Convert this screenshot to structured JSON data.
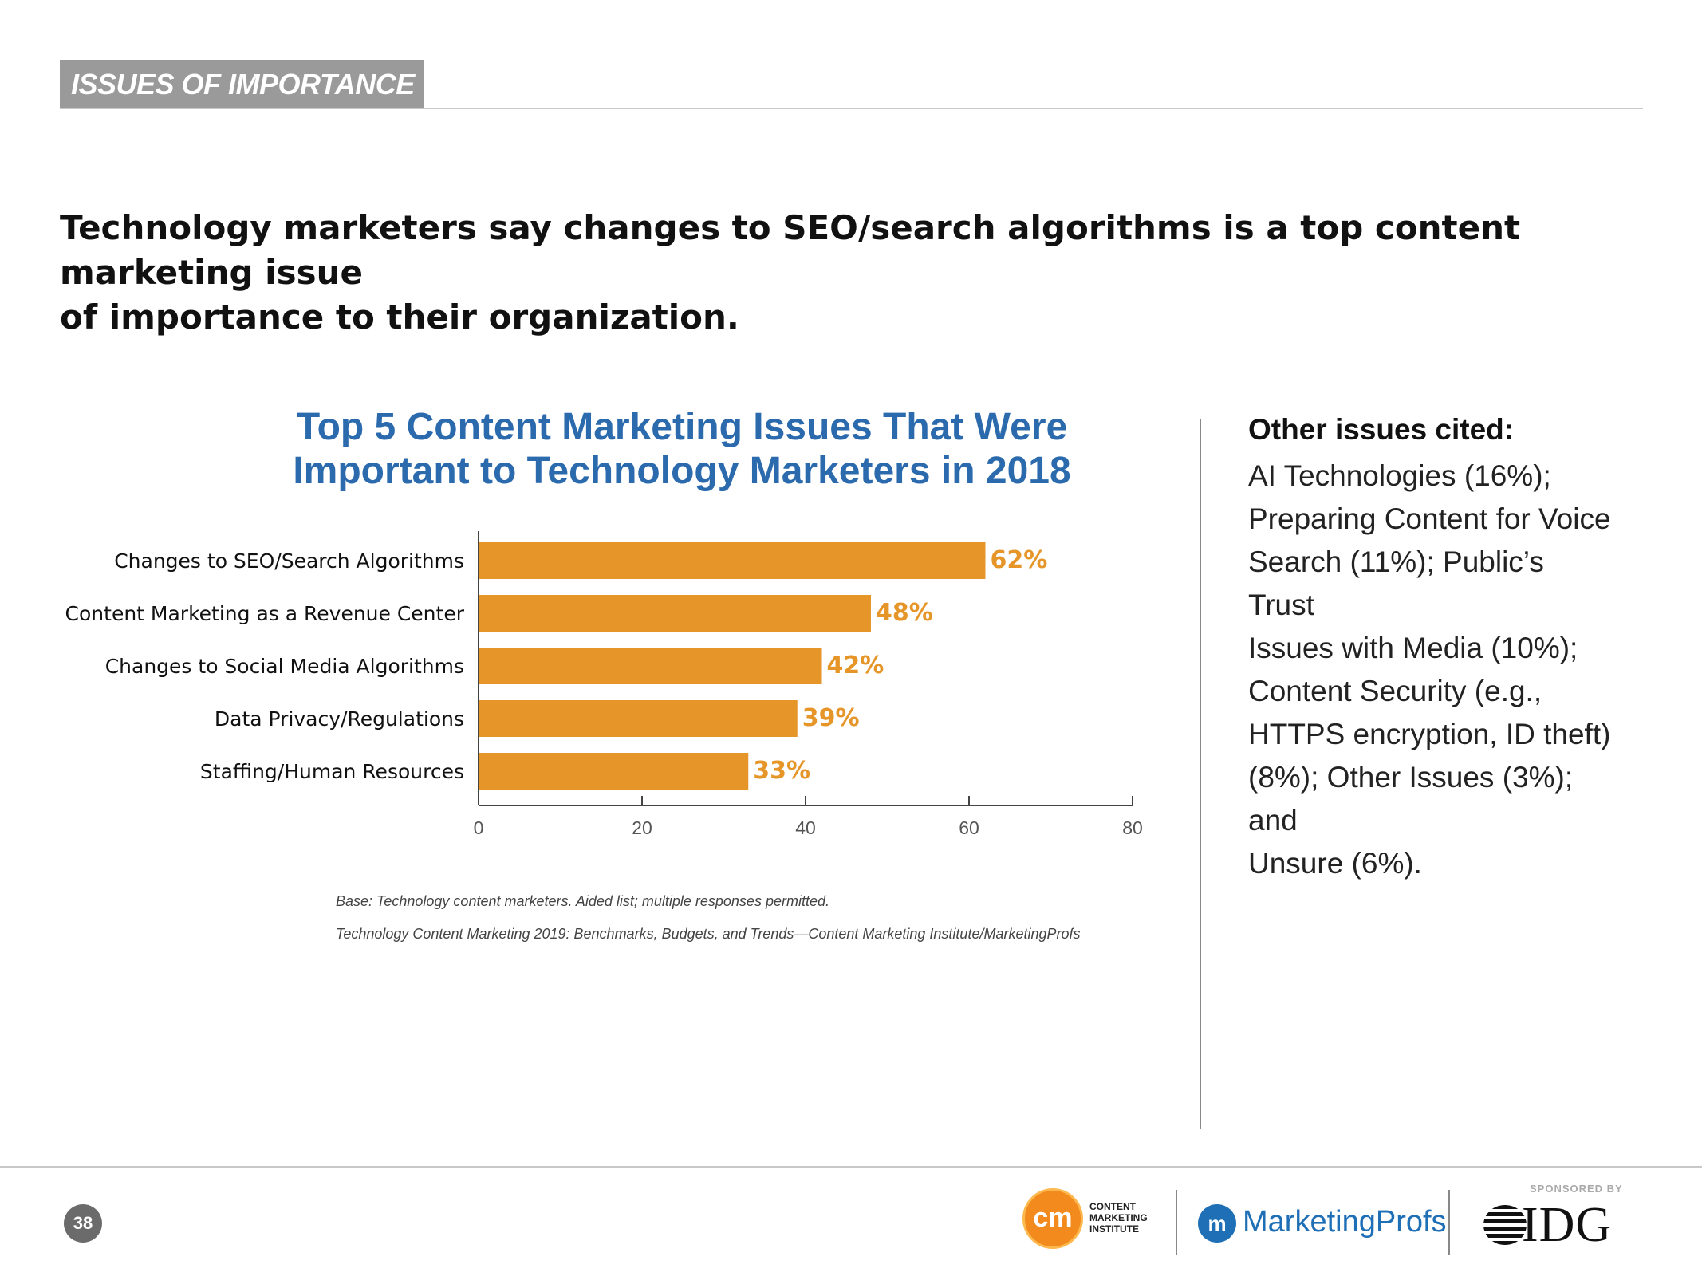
{
  "section": {
    "tab_label": "ISSUES OF IMPORTANCE"
  },
  "headline": {
    "line1": "Technology marketers say changes to SEO/search algorithms is a top content marketing issue",
    "line2": "of importance to their organization."
  },
  "chart_data": {
    "type": "bar",
    "orientation": "horizontal",
    "title": "Top 5 Content Marketing Issues That Were Important to Technology Marketers in 2018",
    "title_lines": [
      "Top 5 Content Marketing Issues That Were",
      "Important to Technology Marketers in 2018"
    ],
    "categories": [
      "Changes to SEO/Search Algorithms",
      "Content Marketing as a Revenue Center",
      "Changes to Social Media Algorithms",
      "Data Privacy/Regulations",
      "Staffing/Human Resources"
    ],
    "values": [
      62,
      48,
      42,
      39,
      33
    ],
    "data_labels": [
      "62%",
      "48%",
      "42%",
      "39%",
      "33%"
    ],
    "xlim": [
      0,
      80
    ],
    "xticks": [
      0,
      20,
      40,
      60,
      80
    ],
    "xlabel": "",
    "ylabel": "",
    "grid": false,
    "bar_color": "#e69629"
  },
  "footnotes": {
    "base": "Base: Technology content marketers. Aided list; multiple responses permitted.",
    "source": "Technology Content Marketing 2019: Benchmarks, Budgets, and Trends—Content Marketing Institute/MarketingProfs"
  },
  "sidebar": {
    "heading": "Other issues cited:",
    "lines": [
      "AI Technologies (16%);",
      "Preparing Content for Voice",
      "Search (11%); Public’s Trust",
      "Issues with Media (10%);",
      "Content Security (e.g.,",
      "HTTPS encryption, ID theft)",
      "(8%); Other Issues (3%); and",
      "Unsure (6%)."
    ]
  },
  "footer": {
    "page_number": "38",
    "sponsored_label": "SPONSORED BY",
    "cmi_mark": "cm",
    "cmi_lines": [
      "CONTENT",
      "MARKETING",
      "INSTITUTE"
    ],
    "mp_name": "MarketingProfs",
    "idg_name": "IDG"
  },
  "colors": {
    "accent_blue": "#2a6aad",
    "bar_orange": "#e69629",
    "tab_gray": "#9a9a9a"
  }
}
